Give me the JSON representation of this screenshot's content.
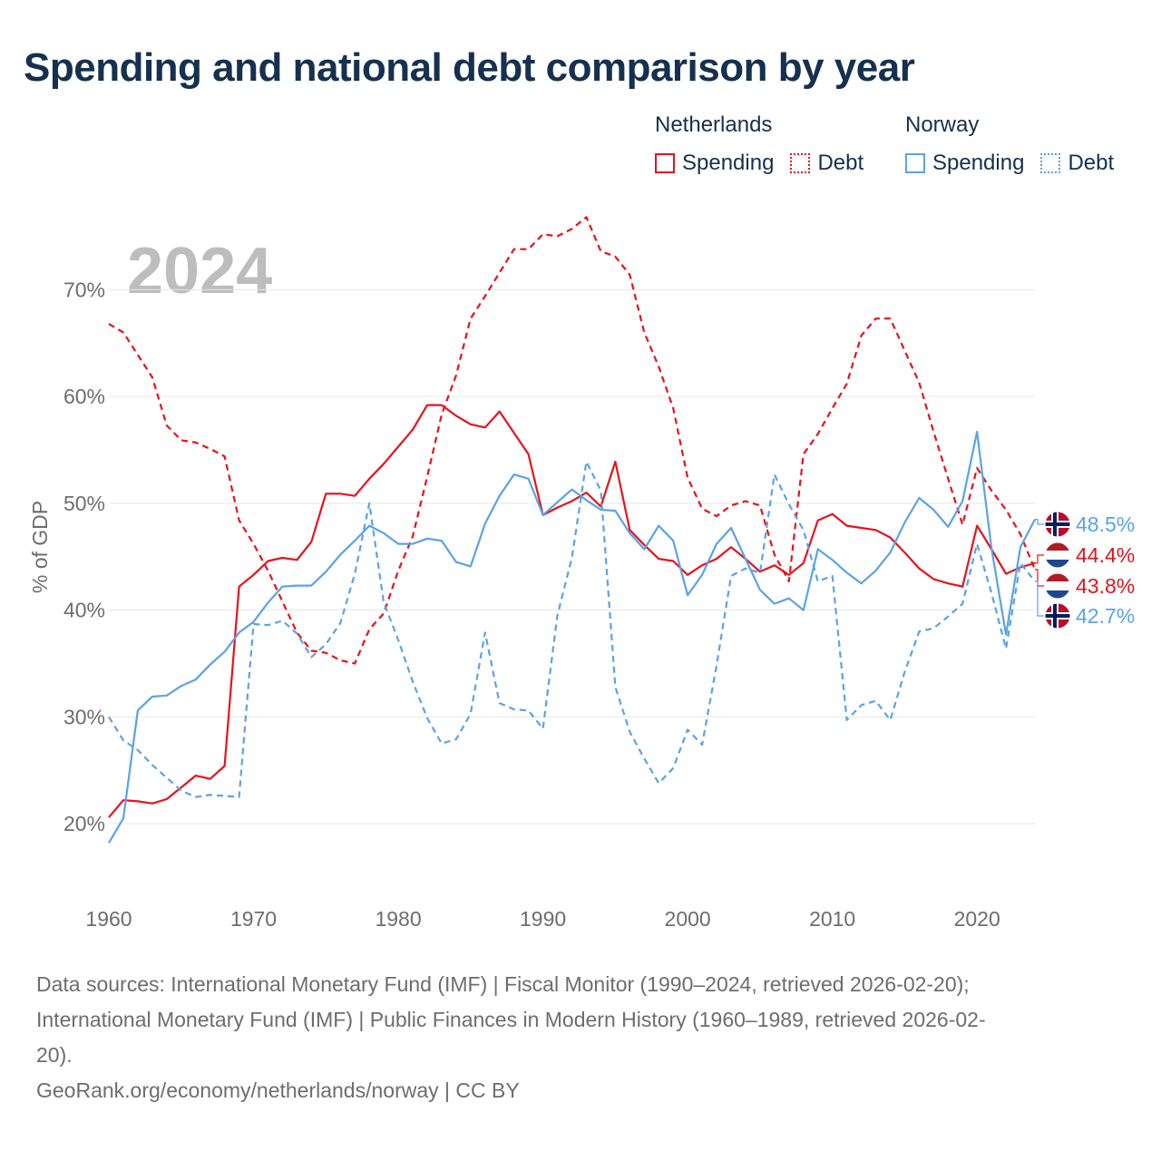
{
  "title": "Spending and national debt comparison by year",
  "year_label": "2024",
  "colors": {
    "netherlands": "#e8111c",
    "norway": "#5aa3e6",
    "grid": "#e6e6e6",
    "tick": "#6d6d6d"
  },
  "legend": {
    "netherlands": {
      "country": "Netherlands",
      "spending": "Spending",
      "debt": "Debt"
    },
    "norway": {
      "country": "Norway",
      "spending": "Spending",
      "debt": "Debt"
    }
  },
  "footer": {
    "sources_line1": "Data sources: International Monetary Fund (IMF) | Fiscal Monitor (1990–2024, retrieved 2026-02-20);",
    "sources_line2": "International Monetary Fund (IMF) | Public Finances in Modern History (1960–1989, retrieved 2026-02-",
    "sources_line3": "20).",
    "url": "GeoRank.org/economy/netherlands/norway | CC BY"
  },
  "chart_data": {
    "type": "line",
    "title": "Spending and national debt comparison by year",
    "xlabel": "",
    "ylabel": "% of GDP",
    "xlim": [
      1960,
      2024
    ],
    "ylim": [
      15,
      77
    ],
    "x_ticks": [
      1960,
      1970,
      1980,
      1990,
      2000,
      2010,
      2020
    ],
    "x_tick_labels": [
      "1960",
      "1970",
      "1980",
      "1990",
      "2000",
      "2010",
      "2020"
    ],
    "y_ticks": [
      20,
      30,
      40,
      50,
      60,
      70
    ],
    "y_tick_labels": [
      "20%",
      "30%",
      "40%",
      "50%",
      "60%",
      "70%"
    ],
    "grid": true,
    "legend_position": "top-right",
    "x": [
      1960,
      1961,
      1962,
      1963,
      1964,
      1965,
      1966,
      1967,
      1968,
      1969,
      1970,
      1971,
      1972,
      1973,
      1974,
      1975,
      1976,
      1977,
      1978,
      1979,
      1980,
      1981,
      1982,
      1983,
      1984,
      1985,
      1986,
      1987,
      1988,
      1989,
      1990,
      1991,
      1992,
      1993,
      1994,
      1995,
      1996,
      1997,
      1998,
      1999,
      2000,
      2001,
      2002,
      2003,
      2004,
      2005,
      2006,
      2007,
      2008,
      2009,
      2010,
      2011,
      2012,
      2013,
      2014,
      2015,
      2016,
      2017,
      2018,
      2019,
      2020,
      2021,
      2022,
      2023,
      2024
    ],
    "series": [
      {
        "name": "Netherlands Spending",
        "country": "netherlands",
        "dash": "solid",
        "values": [
          20.6,
          22.2,
          22.1,
          21.9,
          22.3,
          23.4,
          24.5,
          24.2,
          25.4,
          42.2,
          43.3,
          44.6,
          44.9,
          44.7,
          46.4,
          50.9,
          50.9,
          50.7,
          52.3,
          53.7,
          55.3,
          56.9,
          59.2,
          59.2,
          58.2,
          57.4,
          57.1,
          58.6,
          56.6,
          54.6,
          48.9,
          49.6,
          50.2,
          51.0,
          49.7,
          53.9,
          47.5,
          46.1,
          44.8,
          44.6,
          43.3,
          44.2,
          44.8,
          45.9,
          44.8,
          43.6,
          44.2,
          43.3,
          44.4,
          48.4,
          49.0,
          47.9,
          47.7,
          47.5,
          46.8,
          45.4,
          43.9,
          42.9,
          42.5,
          42.2,
          47.9,
          45.7,
          43.4,
          44.0,
          44.4
        ]
      },
      {
        "name": "Netherlands Debt",
        "country": "netherlands",
        "dash": "dashed",
        "values": [
          66.8,
          66.0,
          63.9,
          61.8,
          57.3,
          55.9,
          55.7,
          55.1,
          54.4,
          48.4,
          46.2,
          43.7,
          40.8,
          37.9,
          36.2,
          36.0,
          35.3,
          35.0,
          38.2,
          39.7,
          43.7,
          46.9,
          52.5,
          58.3,
          62.0,
          67.3,
          69.4,
          71.6,
          73.8,
          73.8,
          75.2,
          75.0,
          75.7,
          76.8,
          73.6,
          73.1,
          71.4,
          66.0,
          62.8,
          58.9,
          52.4,
          49.5,
          48.8,
          49.8,
          50.2,
          49.8,
          45.2,
          42.7,
          54.6,
          56.5,
          58.9,
          61.2,
          65.7,
          67.3,
          67.3,
          64.3,
          61.3,
          56.7,
          52.3,
          48.0,
          53.3,
          51.2,
          49.4,
          47.1,
          43.8
        ]
      },
      {
        "name": "Norway Spending",
        "country": "norway",
        "dash": "solid",
        "values": [
          18.2,
          20.5,
          30.6,
          31.9,
          32.0,
          32.9,
          33.5,
          34.9,
          36.1,
          37.9,
          38.9,
          40.7,
          42.2,
          42.3,
          42.3,
          43.6,
          45.2,
          46.5,
          47.9,
          47.2,
          46.2,
          46.2,
          46.7,
          46.5,
          44.5,
          44.1,
          48.1,
          50.7,
          52.7,
          52.3,
          48.9,
          50.1,
          51.3,
          50.3,
          49.4,
          49.3,
          47.2,
          45.7,
          47.9,
          46.5,
          41.4,
          43.3,
          46.2,
          47.7,
          44.8,
          41.9,
          40.6,
          41.1,
          40.0,
          45.7,
          44.7,
          43.5,
          42.5,
          43.7,
          45.4,
          48.2,
          50.5,
          49.4,
          47.8,
          50.2,
          56.7,
          45.8,
          37.7,
          45.9,
          48.5
        ]
      },
      {
        "name": "Norway Debt",
        "country": "norway",
        "dash": "dashed",
        "values": [
          30.0,
          27.8,
          26.9,
          25.5,
          24.3,
          23.1,
          22.5,
          22.7,
          22.6,
          22.5,
          38.7,
          38.6,
          39.0,
          37.8,
          35.6,
          36.8,
          38.8,
          43.4,
          50.0,
          40.7,
          37.2,
          33.3,
          29.9,
          27.5,
          27.9,
          30.3,
          37.9,
          31.3,
          30.7,
          30.6,
          28.9,
          39.5,
          44.9,
          53.9,
          51.2,
          32.8,
          28.6,
          26.1,
          23.8,
          25.2,
          28.8,
          27.4,
          34.8,
          43.2,
          43.9,
          43.5,
          52.7,
          49.9,
          47.5,
          42.7,
          43.2,
          29.7,
          31.1,
          31.5,
          29.7,
          34.2,
          38.0,
          38.3,
          39.4,
          40.6,
          46.2,
          41.6,
          36.4,
          44.4,
          42.7
        ]
      }
    ],
    "end_labels": [
      {
        "text": "48.5%",
        "country": "norway",
        "flag": "norway"
      },
      {
        "text": "44.4%",
        "country": "netherlands",
        "flag": "netherlands"
      },
      {
        "text": "43.8%",
        "country": "netherlands",
        "flag": "netherlands"
      },
      {
        "text": "42.7%",
        "country": "norway",
        "flag": "norway"
      }
    ]
  }
}
